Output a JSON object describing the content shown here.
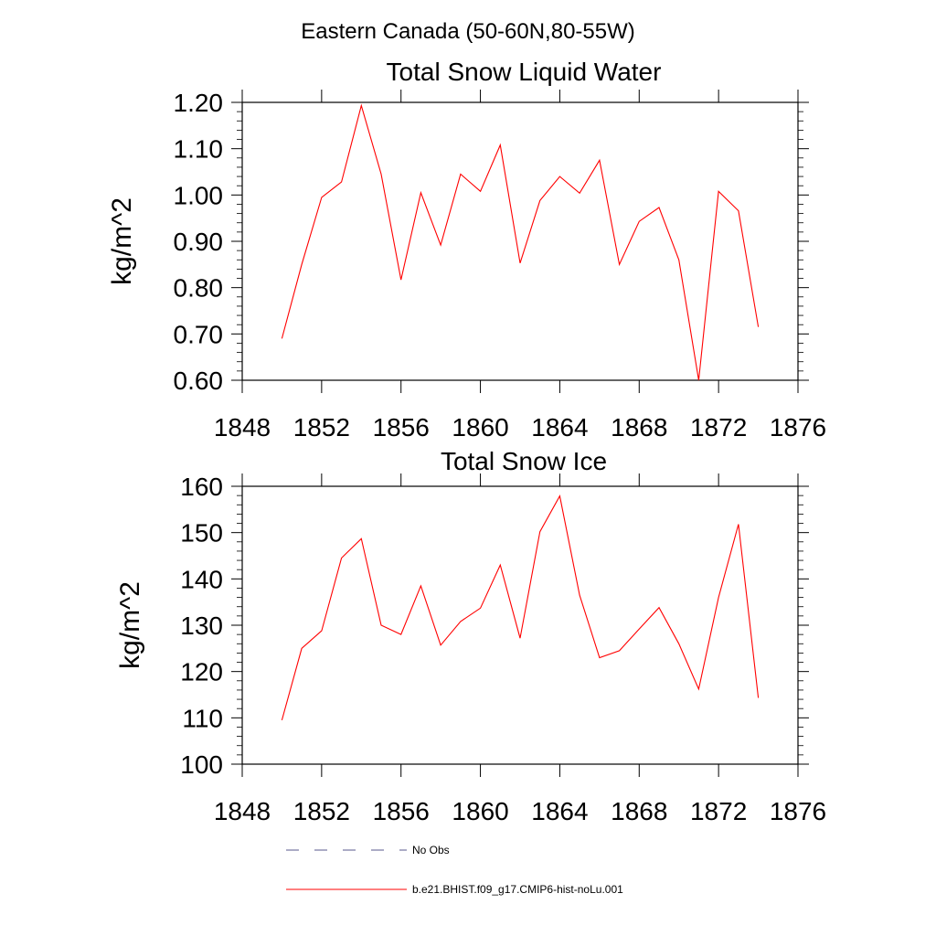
{
  "page_title": "Eastern Canada (50-60N,80-55W)",
  "chart_data": [
    {
      "type": "line",
      "title": "Total Snow Liquid Water",
      "xlabel": "",
      "ylabel": "kg/m^2",
      "xlim": [
        1848,
        1876
      ],
      "ylim": [
        0.6,
        1.2
      ],
      "xticks": [
        "1848",
        "1852",
        "1856",
        "1860",
        "1864",
        "1868",
        "1872",
        "1876"
      ],
      "yticks": [
        "0.60",
        "0.70",
        "0.80",
        "0.90",
        "1.00",
        "1.10",
        "1.20"
      ],
      "x": [
        1850,
        1851,
        1852,
        1853,
        1854,
        1855,
        1856,
        1857,
        1858,
        1859,
        1860,
        1861,
        1862,
        1863,
        1864,
        1865,
        1866,
        1867,
        1868,
        1869,
        1870,
        1871,
        1872,
        1873,
        1874
      ],
      "series": [
        {
          "name": "b.e21.BHIST.f09_g17.CMIP6-hist-noLu.001",
          "color": "#ff0000",
          "values": [
            0.69,
            0.85,
            0.995,
            1.028,
            1.193,
            1.045,
            0.817,
            1.005,
            0.892,
            1.045,
            1.008,
            1.108,
            0.853,
            0.988,
            1.04,
            1.004,
            1.075,
            0.85,
            0.943,
            0.973,
            0.86,
            0.6,
            1.008,
            0.966,
            0.715
          ]
        }
      ]
    },
    {
      "type": "line",
      "title": "Total Snow Ice",
      "xlabel": "",
      "ylabel": "kg/m^2",
      "xlim": [
        1848,
        1876
      ],
      "ylim": [
        100,
        160
      ],
      "xticks": [
        "1848",
        "1852",
        "1856",
        "1860",
        "1864",
        "1868",
        "1872",
        "1876"
      ],
      "yticks": [
        "100",
        "110",
        "120",
        "130",
        "140",
        "150",
        "160"
      ],
      "x": [
        1850,
        1851,
        1852,
        1853,
        1854,
        1855,
        1856,
        1857,
        1858,
        1859,
        1860,
        1861,
        1862,
        1863,
        1864,
        1865,
        1866,
        1867,
        1868,
        1869,
        1870,
        1871,
        1872,
        1873,
        1874
      ],
      "series": [
        {
          "name": "b.e21.BHIST.f09_g17.CMIP6-hist-noLu.001",
          "color": "#ff0000",
          "values": [
            109.5,
            125.0,
            128.8,
            144.5,
            148.7,
            130.0,
            128.0,
            138.5,
            125.7,
            130.8,
            133.7,
            143.0,
            127.2,
            150.2,
            157.9,
            136.5,
            123.0,
            124.5,
            129.2,
            133.8,
            126.0,
            116.2,
            136.0,
            151.8,
            114.3
          ]
        }
      ]
    }
  ],
  "legend": [
    {
      "label": "No Obs",
      "style": "dashed",
      "color": "#5a5a8c"
    },
    {
      "label": "b.e21.BHIST.f09_g17.CMIP6-hist-noLu.001",
      "style": "solid",
      "color": "#ff0000"
    }
  ]
}
